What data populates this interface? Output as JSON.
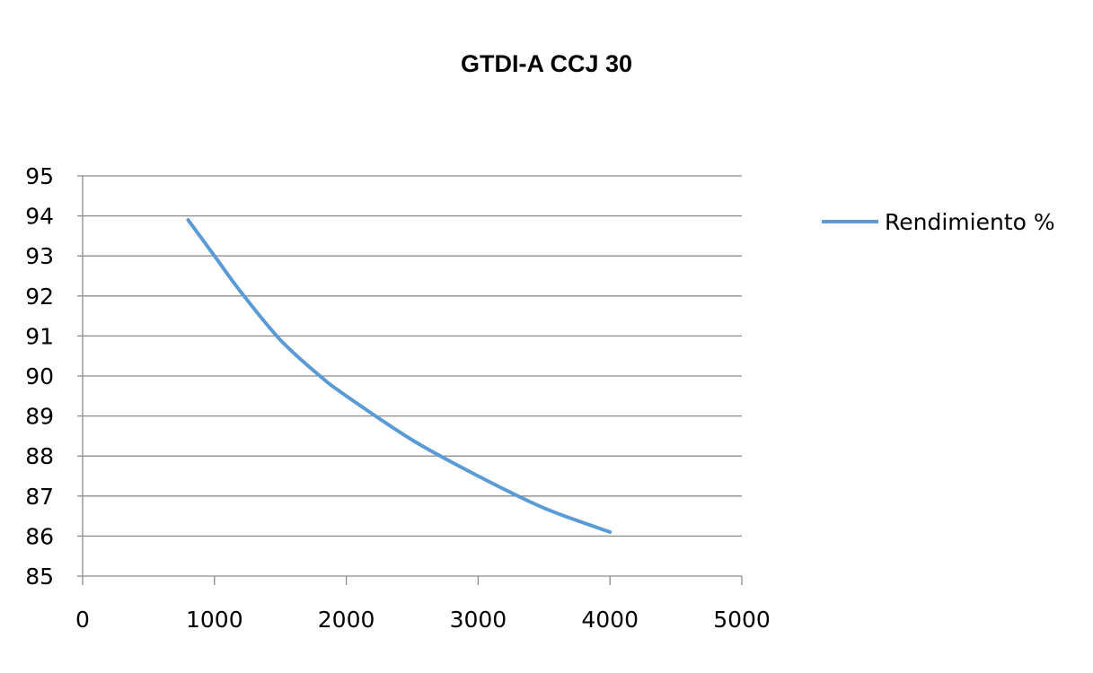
{
  "chart_data": {
    "type": "line",
    "title": "GTDI-A CCJ 30",
    "xlabel": "",
    "ylabel": "",
    "xlim": [
      0,
      5000
    ],
    "ylim": [
      85,
      95
    ],
    "x_ticks": [
      0,
      1000,
      2000,
      3000,
      4000,
      5000
    ],
    "y_ticks": [
      85,
      86,
      87,
      88,
      89,
      90,
      91,
      92,
      93,
      94,
      95
    ],
    "grid": "horizontal",
    "legend_position": "right",
    "series": [
      {
        "name": "Rendimiento %",
        "color": "#5b9bd5",
        "x": [
          800,
          1000,
          1200,
          1500,
          1800,
          2000,
          2500,
          3000,
          3500,
          4000
        ],
        "y": [
          93.9,
          93.0,
          92.1,
          90.9,
          90.0,
          89.5,
          88.4,
          87.5,
          86.7,
          86.1
        ]
      }
    ]
  }
}
